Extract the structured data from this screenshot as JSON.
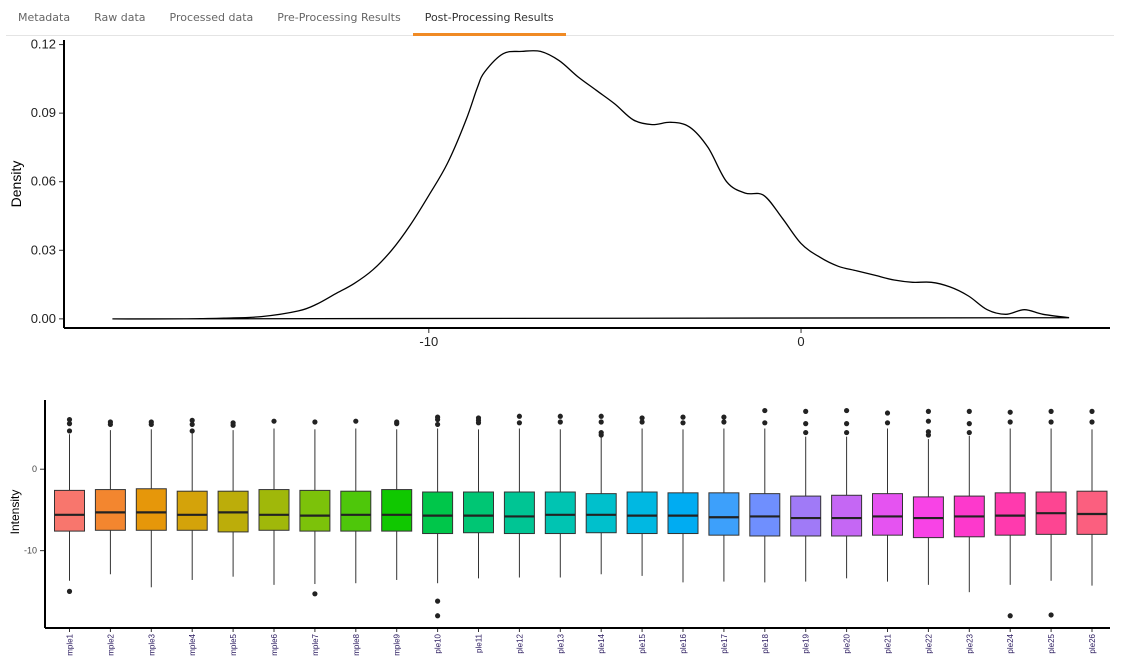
{
  "tabs": [
    {
      "label": "Metadata",
      "active": false
    },
    {
      "label": "Raw data",
      "active": false
    },
    {
      "label": "Processed data",
      "active": false
    },
    {
      "label": "Pre-Processing Results",
      "active": false
    },
    {
      "label": "Post-Processing Results",
      "active": true
    }
  ],
  "colors": {
    "tab_active": "#f08a24"
  },
  "chart_data": [
    {
      "type": "line",
      "title": "",
      "xlabel": "",
      "ylabel": "Density",
      "xlim": [
        -19.8,
        8.3
      ],
      "ylim": [
        -0.004,
        0.122
      ],
      "xticks": [
        -10,
        0
      ],
      "xtick_labels": [
        "-10",
        "0"
      ],
      "yticks": [
        0.0,
        0.03,
        0.06,
        0.09,
        0.12
      ],
      "ytick_labels": [
        "0.00",
        "0.03",
        "0.06",
        "0.09",
        "0.12"
      ],
      "grid": false,
      "series": [
        {
          "x": [
            -18.5,
            -16.5,
            -15.5,
            -14.5,
            -13.5,
            -13.0,
            -12.5,
            -12.0,
            -11.5,
            -11.0,
            -10.5,
            -10.0,
            -9.5,
            -9.0,
            -8.7,
            -8.5,
            -8.0,
            -7.5,
            -7.0,
            -6.5,
            -6.0,
            -5.5,
            -5.0,
            -4.5,
            -4.0,
            -3.5,
            -3.0,
            -2.5,
            -2.0,
            -1.5,
            -1.0,
            -0.5,
            0.0,
            0.5,
            1.0,
            1.5,
            2.0,
            2.5,
            3.0,
            3.5,
            4.0,
            4.5,
            5.0,
            5.5,
            6.0,
            6.5,
            7.2
          ],
          "y": [
            0.0,
            0.0,
            0.0003,
            0.001,
            0.0035,
            0.0065,
            0.011,
            0.0155,
            0.0215,
            0.03,
            0.041,
            0.054,
            0.068,
            0.087,
            0.101,
            0.108,
            0.116,
            0.117,
            0.117,
            0.113,
            0.106,
            0.1,
            0.094,
            0.087,
            0.085,
            0.086,
            0.084,
            0.075,
            0.06,
            0.055,
            0.054,
            0.044,
            0.033,
            0.027,
            0.023,
            0.021,
            0.019,
            0.017,
            0.016,
            0.016,
            0.014,
            0.01,
            0.004,
            0.002,
            0.004,
            0.002,
            0.0005
          ]
        }
      ]
    },
    {
      "type": "box",
      "title": "",
      "xlabel": "",
      "ylabel": "Intensity",
      "ylim": [
        -19.5,
        8.5
      ],
      "yticks": [
        0,
        -10
      ],
      "ytick_labels": [
        "0",
        "-10"
      ],
      "grid": false,
      "legend": "none",
      "categories": [
        "mple1",
        "mple2",
        "mple3",
        "mple4",
        "mple5",
        "mple6",
        "mple7",
        "mple8",
        "mple9",
        "ple10",
        "ple11",
        "ple12",
        "ple13",
        "ple14",
        "ple15",
        "ple16",
        "ple17",
        "ple18",
        "ple19",
        "ple20",
        "ple21",
        "ple22",
        "ple23",
        "ple24",
        "ple25",
        "ple26"
      ],
      "boxes": [
        {
          "low": -13.7,
          "q1": -7.6,
          "median": -5.6,
          "q3": -2.6,
          "high": 4.3,
          "outliers": [
            -15.0,
            4.7,
            5.6,
            6.1
          ],
          "color": "#f8766d"
        },
        {
          "low": -12.9,
          "q1": -7.5,
          "median": -5.3,
          "q3": -2.5,
          "high": 4.8,
          "outliers": [
            5.5,
            5.8
          ],
          "color": "#f3862f"
        },
        {
          "low": -14.5,
          "q1": -7.5,
          "median": -5.3,
          "q3": -2.4,
          "high": 4.9,
          "outliers": [
            5.5,
            5.8
          ],
          "color": "#e6970a"
        },
        {
          "low": -13.6,
          "q1": -7.5,
          "median": -5.6,
          "q3": -2.7,
          "high": 4.4,
          "outliers": [
            4.7,
            5.5,
            6.0
          ],
          "color": "#d4a30a"
        },
        {
          "low": -13.2,
          "q1": -7.7,
          "median": -5.3,
          "q3": -2.7,
          "high": 4.8,
          "outliers": [
            5.4,
            5.7
          ],
          "color": "#bcad0a"
        },
        {
          "low": -14.2,
          "q1": -7.5,
          "median": -5.6,
          "q3": -2.5,
          "high": 5.0,
          "outliers": [
            5.9
          ],
          "color": "#a0b80a"
        },
        {
          "low": -14.1,
          "q1": -7.6,
          "median": -5.7,
          "q3": -2.6,
          "high": 4.9,
          "outliers": [
            -15.3,
            5.8
          ],
          "color": "#7cc20a"
        },
        {
          "low": -14.0,
          "q1": -7.6,
          "median": -5.6,
          "q3": -2.7,
          "high": 5.0,
          "outliers": [
            5.9
          ],
          "color": "#4ec70a"
        },
        {
          "low": -13.6,
          "q1": -7.6,
          "median": -5.6,
          "q3": -2.5,
          "high": 4.9,
          "outliers": [
            5.6,
            5.8
          ],
          "color": "#10c800"
        },
        {
          "low": -14.0,
          "q1": -7.9,
          "median": -5.7,
          "q3": -2.8,
          "high": 5.0,
          "outliers": [
            -16.2,
            -18.0,
            5.5,
            6.1,
            6.4
          ],
          "color": "#00c64a"
        },
        {
          "low": -13.4,
          "q1": -7.8,
          "median": -5.7,
          "q3": -2.8,
          "high": 4.9,
          "outliers": [
            5.7,
            6.0,
            6.3
          ],
          "color": "#00c674"
        },
        {
          "low": -13.3,
          "q1": -7.9,
          "median": -5.8,
          "q3": -2.8,
          "high": 5.0,
          "outliers": [
            5.7,
            6.5
          ],
          "color": "#00c594"
        },
        {
          "low": -13.3,
          "q1": -7.9,
          "median": -5.6,
          "q3": -2.8,
          "high": 4.9,
          "outliers": [
            5.8,
            6.5
          ],
          "color": "#00c4b2"
        },
        {
          "low": -12.9,
          "q1": -7.8,
          "median": -5.6,
          "q3": -3.0,
          "high": 4.0,
          "outliers": [
            4.2,
            4.5,
            5.8,
            6.5
          ],
          "color": "#00c0cc"
        },
        {
          "low": -13.1,
          "q1": -7.9,
          "median": -5.7,
          "q3": -2.8,
          "high": 5.0,
          "outliers": [
            5.8,
            6.3
          ],
          "color": "#00b8e2"
        },
        {
          "low": -13.9,
          "q1": -7.9,
          "median": -5.7,
          "q3": -2.9,
          "high": 4.9,
          "outliers": [
            5.7,
            6.4
          ],
          "color": "#00acf2"
        },
        {
          "low": -13.8,
          "q1": -8.1,
          "median": -5.9,
          "q3": -2.9,
          "high": 5.0,
          "outliers": [
            5.8,
            6.4
          ],
          "color": "#3da0fb"
        },
        {
          "low": -13.9,
          "q1": -8.2,
          "median": -5.8,
          "q3": -3.0,
          "high": 5.0,
          "outliers": [
            5.7,
            7.2
          ],
          "color": "#6f8ffe"
        },
        {
          "low": -13.8,
          "q1": -8.2,
          "median": -6.0,
          "q3": -3.3,
          "high": 4.0,
          "outliers": [
            4.5,
            5.6,
            7.1
          ],
          "color": "#a07af7"
        },
        {
          "low": -13.4,
          "q1": -8.2,
          "median": -6.0,
          "q3": -3.2,
          "high": 4.0,
          "outliers": [
            4.5,
            5.6,
            7.2
          ],
          "color": "#c567f4"
        },
        {
          "low": -13.8,
          "q1": -8.1,
          "median": -5.8,
          "q3": -3.0,
          "high": 5.0,
          "outliers": [
            5.7,
            6.9
          ],
          "color": "#e553f1"
        },
        {
          "low": -14.2,
          "q1": -8.4,
          "median": -6.0,
          "q3": -3.4,
          "high": 3.7,
          "outliers": [
            4.2,
            4.6,
            5.9,
            7.1
          ],
          "color": "#f843e6"
        },
        {
          "low": -15.1,
          "q1": -8.3,
          "median": -5.8,
          "q3": -3.3,
          "high": 4.1,
          "outliers": [
            4.5,
            5.6,
            7.1
          ],
          "color": "#fd39cc"
        },
        {
          "low": -14.2,
          "q1": -8.1,
          "median": -5.7,
          "q3": -2.9,
          "high": 5.0,
          "outliers": [
            -18.0,
            5.8,
            7.0
          ],
          "color": "#ff3aae"
        },
        {
          "low": -13.7,
          "q1": -8.0,
          "median": -5.4,
          "q3": -2.8,
          "high": 5.0,
          "outliers": [
            -17.9,
            5.8,
            7.1
          ],
          "color": "#fd4592"
        },
        {
          "low": -14.3,
          "q1": -8.0,
          "median": -5.5,
          "q3": -2.7,
          "high": 4.9,
          "outliers": [
            5.8,
            7.1
          ],
          "color": "#fb5f7f"
        }
      ]
    }
  ]
}
